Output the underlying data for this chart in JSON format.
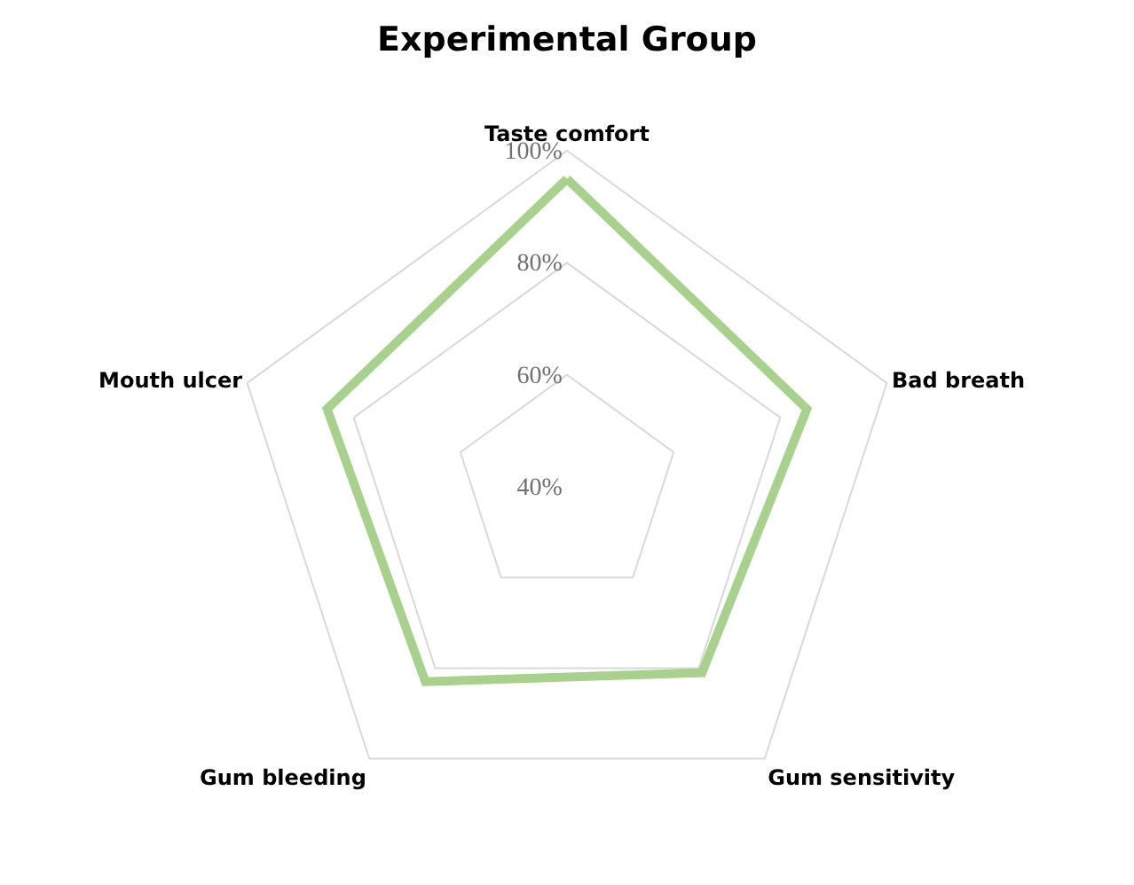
{
  "chart_data": {
    "type": "radar",
    "title": "Experimental Group",
    "categories": [
      "Taste comfort",
      "Bad breath",
      "Gum sensitivity",
      "Gum bleeding",
      "Mouth ulcer"
    ],
    "series": [
      {
        "color": "#a9d18e",
        "values": [
          95,
          85,
          81,
          83,
          85
        ]
      }
    ],
    "ylim": [
      40,
      100
    ],
    "yticks": [
      {
        "value": 40,
        "label": "40%"
      },
      {
        "value": 60,
        "label": "60%"
      },
      {
        "value": 80,
        "label": "80%"
      },
      {
        "value": 100,
        "label": "100%"
      }
    ],
    "grid": true
  }
}
